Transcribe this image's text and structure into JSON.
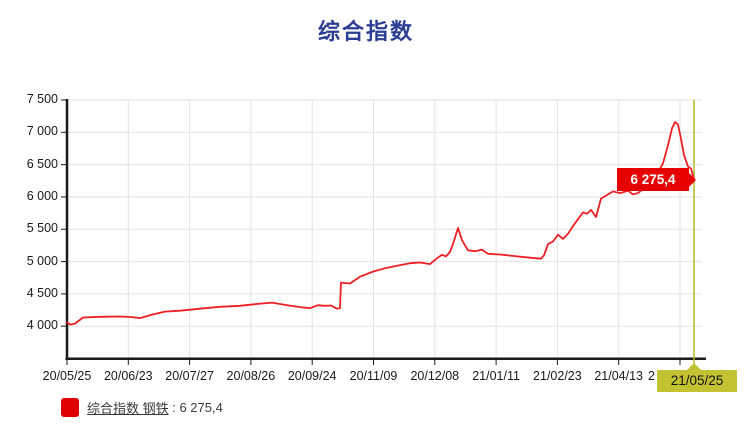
{
  "title": "综合指数",
  "colors": {
    "title": "#2c3e94",
    "series_line": "#ed1f24",
    "callout_bg": "#e60000",
    "callout_text": "#ffffff",
    "crosshair": "#b9b821",
    "crosshair_label_bg": "#c3c233",
    "gridline": "#e2e2e2",
    "axis": "#1a1a1a",
    "tick_label": "#1a1a1a",
    "legend_checkbox": "#e00000"
  },
  "callout": {
    "value": "6 275,4"
  },
  "crosshair": {
    "date_label": "21/05/25"
  },
  "legend": {
    "check_glyph": "✔",
    "series_label": "综合指数 钢铁",
    "separator": " : ",
    "value_text": "6 275,4"
  },
  "chart_data": {
    "type": "line",
    "title": "综合指数",
    "series": [
      {
        "name": "综合指数 钢铁",
        "last_value": 6275.4,
        "last_date": "21/05/25"
      }
    ],
    "ylim": [
      3500,
      7500
    ],
    "grid": true,
    "legend_position": "bottom-left",
    "y_ticks": [
      {
        "label": "7 500",
        "value": 7500
      },
      {
        "label": "7 000",
        "value": 7000
      },
      {
        "label": "6 500",
        "value": 6500
      },
      {
        "label": "6 000",
        "value": 6000
      },
      {
        "label": "5 500",
        "value": 5500
      },
      {
        "label": "5 000",
        "value": 5000
      },
      {
        "label": "4 500",
        "value": 4500
      },
      {
        "label": "4 000",
        "value": 4000
      }
    ],
    "x_tick_labels": [
      "20/05/25",
      "20/06/23",
      "20/07/27",
      "20/08/26",
      "20/09/24",
      "20/11/09",
      "20/12/08",
      "21/01/11",
      "21/02/23",
      "21/04/13",
      "2"
    ],
    "points_note": "pairs of [fraction of x-axis from 20/05/25 (0) to 21/05/25 (1), index value]",
    "points": [
      [
        0.0,
        4060
      ],
      [
        0.0048,
        4025
      ],
      [
        0.0128,
        4040
      ],
      [
        0.0255,
        4135
      ],
      [
        0.0526,
        4145
      ],
      [
        0.0845,
        4150
      ],
      [
        0.1037,
        4140
      ],
      [
        0.1164,
        4125
      ],
      [
        0.1356,
        4180
      ],
      [
        0.1563,
        4225
      ],
      [
        0.1802,
        4240
      ],
      [
        0.2121,
        4270
      ],
      [
        0.244,
        4300
      ],
      [
        0.2759,
        4315
      ],
      [
        0.3046,
        4345
      ],
      [
        0.3269,
        4365
      ],
      [
        0.3477,
        4330
      ],
      [
        0.3716,
        4295
      ],
      [
        0.3876,
        4280
      ],
      [
        0.4003,
        4325
      ],
      [
        0.4115,
        4315
      ],
      [
        0.4211,
        4320
      ],
      [
        0.4306,
        4270
      ],
      [
        0.4354,
        4280
      ],
      [
        0.437,
        4675
      ],
      [
        0.4513,
        4660
      ],
      [
        0.4673,
        4765
      ],
      [
        0.488,
        4845
      ],
      [
        0.5072,
        4895
      ],
      [
        0.5263,
        4935
      ],
      [
        0.547,
        4975
      ],
      [
        0.563,
        4985
      ],
      [
        0.5789,
        4960
      ],
      [
        0.5901,
        5050
      ],
      [
        0.598,
        5105
      ],
      [
        0.6044,
        5080
      ],
      [
        0.6108,
        5150
      ],
      [
        0.6172,
        5320
      ],
      [
        0.6236,
        5520
      ],
      [
        0.63,
        5330
      ],
      [
        0.6395,
        5175
      ],
      [
        0.6507,
        5160
      ],
      [
        0.6619,
        5185
      ],
      [
        0.6714,
        5120
      ],
      [
        0.6906,
        5110
      ],
      [
        0.7145,
        5085
      ],
      [
        0.7384,
        5060
      ],
      [
        0.756,
        5045
      ],
      [
        0.7608,
        5095
      ],
      [
        0.7671,
        5270
      ],
      [
        0.7751,
        5310
      ],
      [
        0.7831,
        5415
      ],
      [
        0.7911,
        5350
      ],
      [
        0.799,
        5430
      ],
      [
        0.807,
        5550
      ],
      [
        0.815,
        5655
      ],
      [
        0.823,
        5760
      ],
      [
        0.8293,
        5740
      ],
      [
        0.8357,
        5800
      ],
      [
        0.8437,
        5690
      ],
      [
        0.8517,
        5975
      ],
      [
        0.8612,
        6030
      ],
      [
        0.8708,
        6085
      ],
      [
        0.882,
        6060
      ],
      [
        0.8947,
        6095
      ],
      [
        0.9027,
        6040
      ],
      [
        0.9107,
        6060
      ],
      [
        0.9187,
        6120
      ],
      [
        0.9298,
        6230
      ],
      [
        0.941,
        6350
      ],
      [
        0.9506,
        6520
      ],
      [
        0.9585,
        6800
      ],
      [
        0.9649,
        7060
      ],
      [
        0.9697,
        7160
      ],
      [
        0.9745,
        7120
      ],
      [
        0.9793,
        6900
      ],
      [
        0.9841,
        6650
      ],
      [
        0.9904,
        6470
      ],
      [
        0.9952,
        6440
      ],
      [
        1.0,
        6275.4
      ]
    ]
  }
}
